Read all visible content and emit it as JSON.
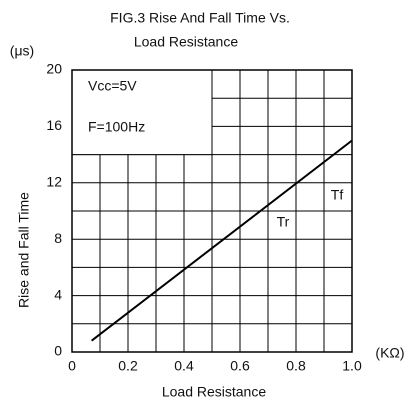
{
  "chart_data": {
    "type": "line",
    "title": "FIG.3 Rise And Fall Time Vs.",
    "subtitle": "Load Resistance",
    "y_unit": "(μs)",
    "x_unit": "(KΩ)",
    "x_label": "Load Resistance",
    "y_label": "Rise and Fall Time",
    "box_texts": [
      "Vcc=5V",
      "F=100Hz"
    ],
    "annotations": [
      "Tf",
      "Tr"
    ],
    "x": [
      0.07,
      1.0
    ],
    "series": [
      {
        "color": "#000000",
        "values": [
          0.8,
          15
        ]
      }
    ],
    "xlim": [
      0,
      1.0
    ],
    "ylim": [
      0,
      20
    ],
    "xticks": [
      0,
      0.2,
      0.4,
      0.6,
      0.8,
      {
        "value": 1.0,
        "label": "1.0"
      }
    ],
    "yticks": [
      0,
      4,
      8,
      12,
      16,
      20
    ],
    "xgrid": [
      0.1,
      0.3,
      0.5,
      0.7,
      0.9
    ],
    "ygrid": [
      2,
      6,
      10,
      14,
      18
    ],
    "grid": true
  }
}
